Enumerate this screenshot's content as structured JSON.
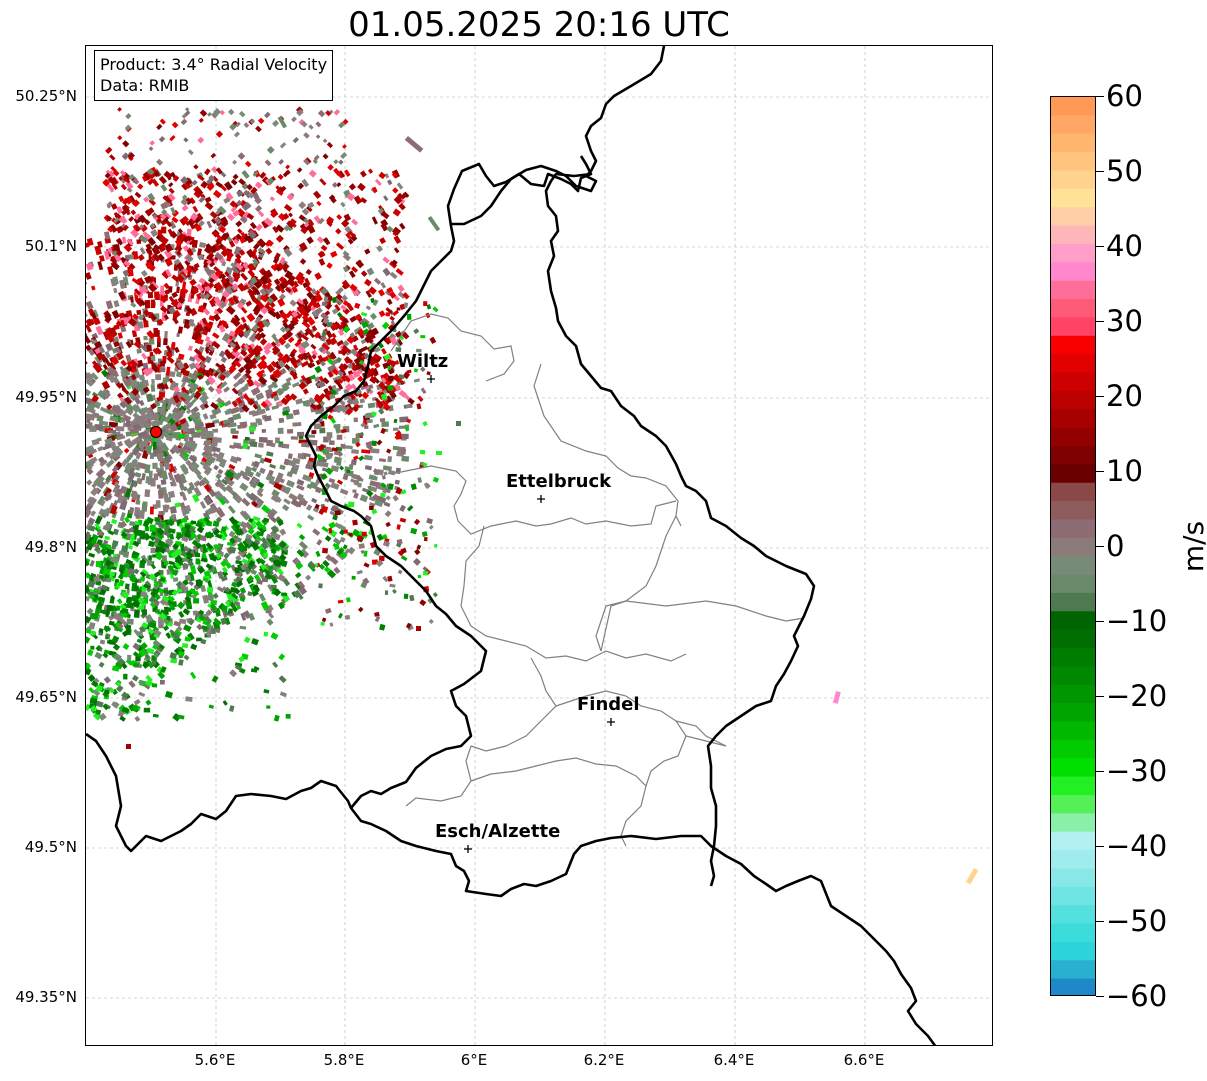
{
  "title": "01.05.2025 20:16 UTC",
  "info_box": {
    "product": "Product: 3.4° Radial Velocity",
    "data": "Data: RMIB"
  },
  "map": {
    "lat_labels": [
      "50.25°N",
      "50.1°N",
      "49.95°N",
      "49.8°N",
      "49.65°N",
      "49.5°N",
      "49.35°N"
    ],
    "lon_labels": [
      "5.6°E",
      "5.8°E",
      "6°E",
      "6.2°E",
      "6.4°E",
      "6.6°E"
    ],
    "gridlines": true,
    "cities": [
      {
        "name": "Wiltz"
      },
      {
        "name": "Ettelbruck"
      },
      {
        "name": "Findel"
      },
      {
        "name": "Esch/Alzette"
      }
    ],
    "radar_site_color": "#ff0000",
    "border_color": "#000000",
    "district_color": "#808080"
  },
  "colorbar": {
    "unit": "m/s",
    "min": -60,
    "max": 60,
    "tick_labels": [
      "60",
      "50",
      "40",
      "30",
      "20",
      "10",
      "0",
      "−10",
      "−20",
      "−30",
      "−40",
      "−50",
      "−60"
    ],
    "colors_top_to_bottom": [
      "#ff9955",
      "#ffa865",
      "#ffb670",
      "#ffc57f",
      "#ffd38d",
      "#ffe298",
      "#ffd0a8",
      "#ffb6b8",
      "#ff9ec8",
      "#ff88cc",
      "#ff6e9a",
      "#ff5a78",
      "#ff4466",
      "#f80000",
      "#e00000",
      "#cc0000",
      "#bb0000",
      "#a80000",
      "#940000",
      "#7e0000",
      "#6a0000",
      "#8a4848",
      "#8e5c5c",
      "#8d6c74",
      "#8b7b7b",
      "#788b78",
      "#6a8a6a",
      "#4f7a4f",
      "#006400",
      "#006e00",
      "#007c00",
      "#008800",
      "#009600",
      "#00a400",
      "#00b800",
      "#00cc00",
      "#00e000",
      "#22f022",
      "#55f055",
      "#88f0a8",
      "#b0f0f0",
      "#a0ecec",
      "#88e8e8",
      "#6ee4e4",
      "#55e0e0",
      "#3ddcdc",
      "#2ed4dc",
      "#28b0d0",
      "#1e88c8"
    ]
  },
  "chart_data": {
    "type": "map",
    "title": "01.05.2025 20:16 UTC",
    "lon_range": [
      5.4,
      6.8
    ],
    "lat_range": [
      49.3,
      50.3
    ],
    "cities": [
      {
        "name": "Wiltz",
        "lon": 5.93,
        "lat": 49.966
      },
      {
        "name": "Ettelbruck",
        "lon": 6.1,
        "lat": 49.846
      },
      {
        "name": "Findel",
        "lon": 6.21,
        "lat": 49.626
      },
      {
        "name": "Esch/Alzette",
        "lon": 5.99,
        "lat": 49.498
      }
    ],
    "radar_site": {
      "lon": 5.505,
      "lat": 49.914
    },
    "colorbar_range": [
      -60,
      60
    ],
    "colorbar_unit": "m/s"
  }
}
